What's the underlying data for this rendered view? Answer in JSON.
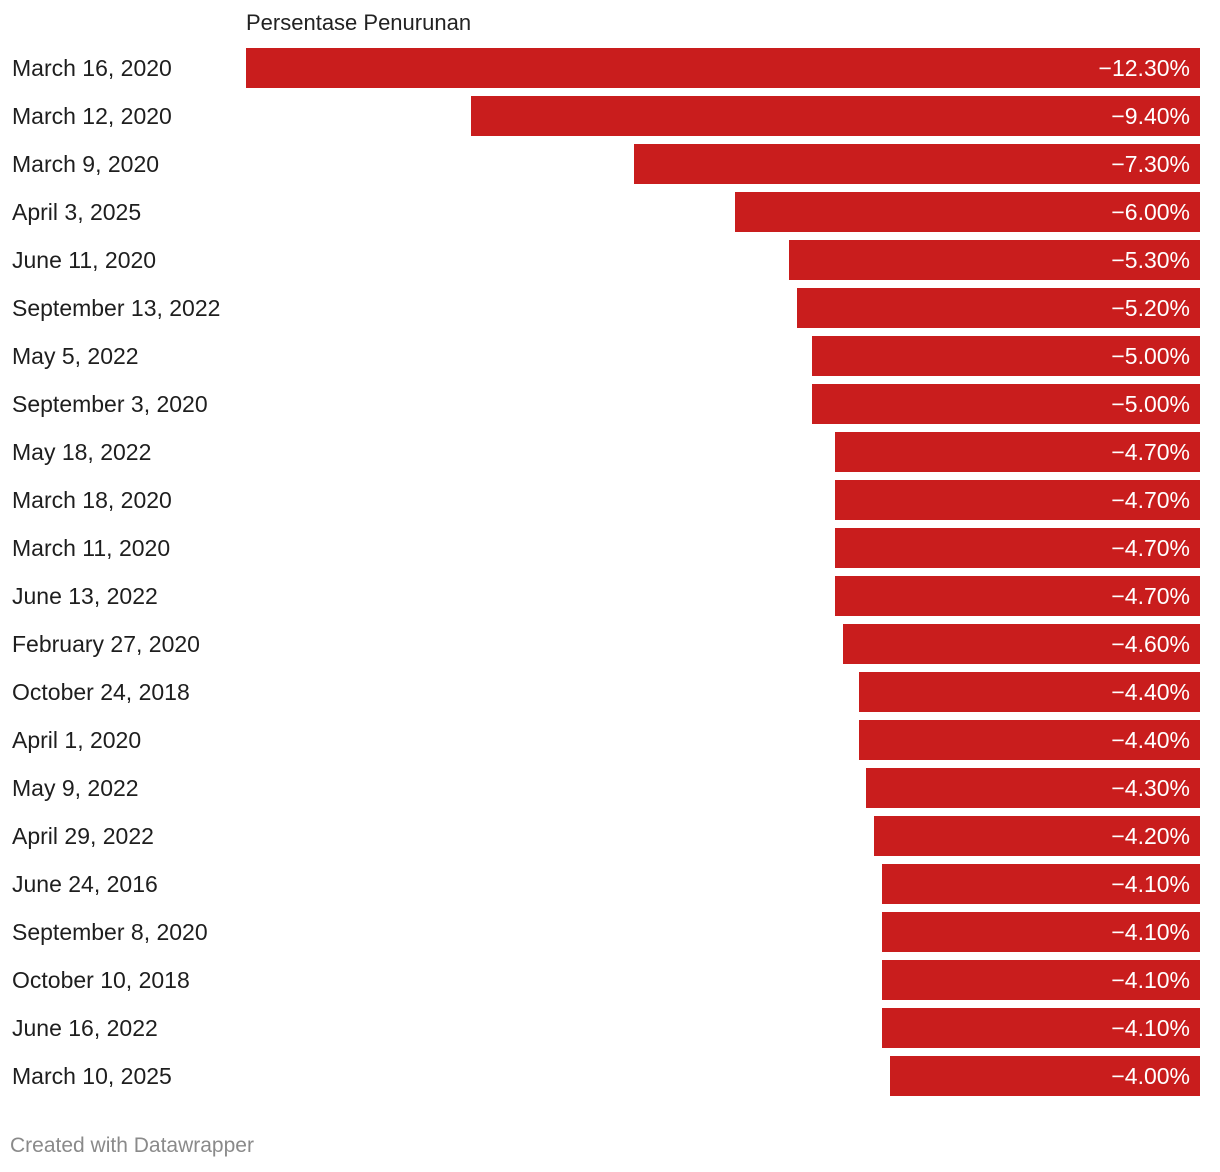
{
  "chart_data": {
    "type": "bar",
    "orientation": "horizontal",
    "title": "",
    "column_title": "Persentase Penurunan",
    "xlabel": "",
    "ylabel": "",
    "xlim": [
      -12.3,
      0
    ],
    "bar_color": "#c91d1d",
    "value_suffix": "%",
    "categories": [
      "March 16, 2020",
      "March 12, 2020",
      "March 9, 2020",
      "April 3, 2025",
      "June 11, 2020",
      "September 13, 2022",
      "May 5, 2022",
      "September 3, 2020",
      "May 18, 2022",
      "March 18, 2020",
      "March 11, 2020",
      "June 13, 2022",
      "February 27, 2020",
      "October 24, 2018",
      "April 1, 2020",
      "May 9, 2022",
      "April 29, 2022",
      "June 24, 2016",
      "September 8, 2020",
      "October 10, 2018",
      "June 16, 2022",
      "March 10, 2025"
    ],
    "values": [
      -12.3,
      -9.4,
      -7.3,
      -6.0,
      -5.3,
      -5.2,
      -5.0,
      -5.0,
      -4.7,
      -4.7,
      -4.7,
      -4.7,
      -4.6,
      -4.4,
      -4.4,
      -4.3,
      -4.2,
      -4.1,
      -4.1,
      -4.1,
      -4.1,
      -4.0
    ],
    "value_labels": [
      "−12.30%",
      "−9.40%",
      "−7.30%",
      "−6.00%",
      "−5.30%",
      "−5.20%",
      "−5.00%",
      "−5.00%",
      "−4.70%",
      "−4.70%",
      "−4.70%",
      "−4.70%",
      "−4.60%",
      "−4.40%",
      "−4.40%",
      "−4.30%",
      "−4.20%",
      "−4.10%",
      "−4.10%",
      "−4.10%",
      "−4.10%",
      "−4.00%"
    ]
  },
  "footer": {
    "credit": "Created with Datawrapper"
  }
}
